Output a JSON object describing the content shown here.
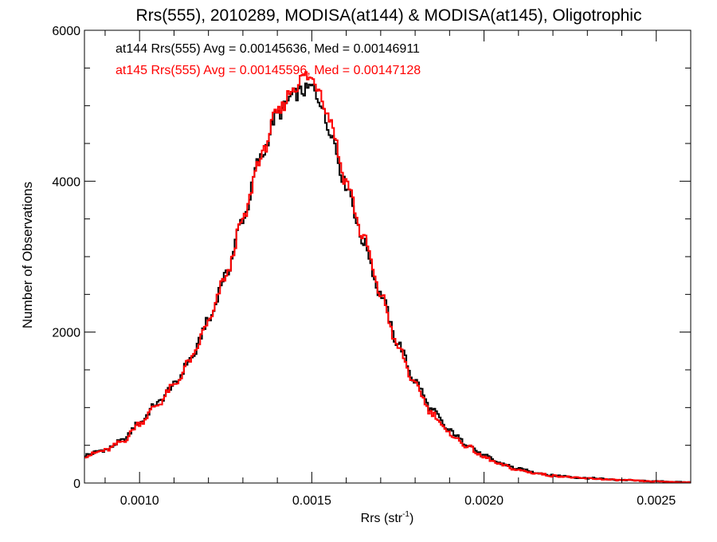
{
  "chart_data": {
    "type": "line",
    "title": "Rrs(555), 2010289, MODISA(at144) & MODISA(at145), Oligotrophic",
    "xlabel_main": "Rrs (str",
    "xlabel_sup": "-1",
    "xlabel_close": ")",
    "ylabel": "Number of Observations",
    "xlim": [
      0.00084,
      0.0026
    ],
    "ylim": [
      0,
      6000
    ],
    "x_ticks": [
      {
        "value": 0.001,
        "label": "0.0010"
      },
      {
        "value": 0.0015,
        "label": "0.0015"
      },
      {
        "value": 0.002,
        "label": "0.0020"
      },
      {
        "value": 0.0025,
        "label": "0.0025"
      }
    ],
    "y_ticks": [
      {
        "value": 0,
        "label": "0"
      },
      {
        "value": 2000,
        "label": "2000"
      },
      {
        "value": 4000,
        "label": "4000"
      },
      {
        "value": 6000,
        "label": "6000"
      }
    ],
    "x_minor_step": 0.0001,
    "y_minor_step": 500,
    "grid": false,
    "legend_position": "top-left",
    "series": [
      {
        "name": "at144",
        "annotation": "at144 Rrs(555) Avg = 0.00145636, Med = 0.00146911",
        "color": "#000000",
        "step": "histogram",
        "x": [
          0.00084,
          0.0009,
          0.00095,
          0.001,
          0.00105,
          0.0011,
          0.00115,
          0.0012,
          0.00125,
          0.0013,
          0.00135,
          0.0014,
          0.00145,
          0.00148,
          0.0015,
          0.00152,
          0.00155,
          0.0016,
          0.00165,
          0.0017,
          0.00175,
          0.0018,
          0.00185,
          0.0019,
          0.00195,
          0.002,
          0.00205,
          0.0021,
          0.00215,
          0.0022,
          0.0023,
          0.0024,
          0.0025,
          0.0026
        ],
        "y": [
          370,
          440,
          560,
          800,
          1050,
          1300,
          1650,
          2150,
          2750,
          3500,
          4300,
          4880,
          5150,
          5200,
          5250,
          5100,
          4700,
          3950,
          3200,
          2500,
          1850,
          1350,
          960,
          690,
          520,
          360,
          260,
          185,
          140,
          100,
          65,
          40,
          22,
          10
        ]
      },
      {
        "name": "at145",
        "annotation": "at145 Rrs(555) Avg = 0.00145596, Med = 0.00147128",
        "color": "#ff0000",
        "step": "histogram",
        "x": [
          0.00084,
          0.0009,
          0.00095,
          0.001,
          0.00105,
          0.0011,
          0.00115,
          0.0012,
          0.00125,
          0.0013,
          0.00135,
          0.0014,
          0.00145,
          0.00148,
          0.0015,
          0.00152,
          0.00155,
          0.0016,
          0.00165,
          0.0017,
          0.00175,
          0.0018,
          0.00185,
          0.0019,
          0.00195,
          0.002,
          0.00205,
          0.0021,
          0.00215,
          0.0022,
          0.0023,
          0.0024,
          0.0025,
          0.0026
        ],
        "y": [
          360,
          430,
          550,
          790,
          1030,
          1290,
          1640,
          2130,
          2730,
          3480,
          4300,
          4900,
          5250,
          5400,
          5350,
          5250,
          4850,
          4000,
          3250,
          2500,
          1800,
          1300,
          920,
          650,
          490,
          340,
          240,
          170,
          130,
          95,
          60,
          38,
          20,
          8
        ]
      }
    ]
  }
}
